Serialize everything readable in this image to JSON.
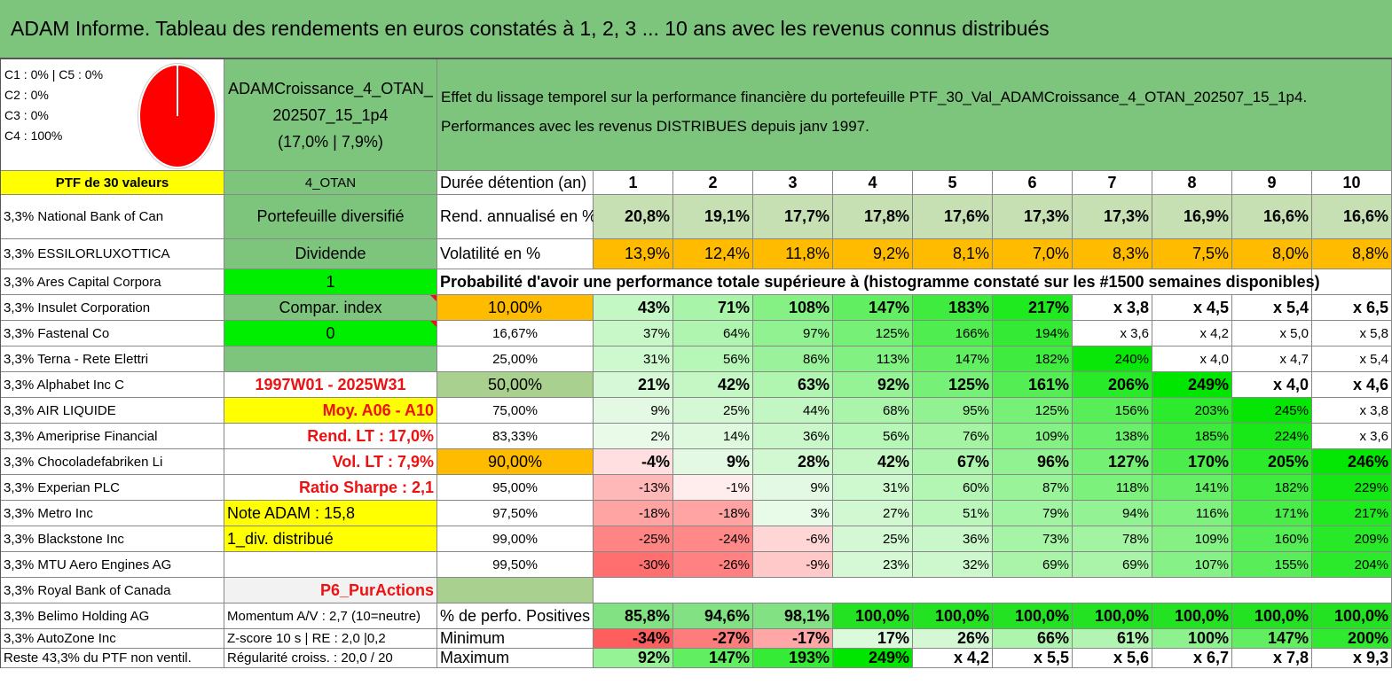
{
  "title": "ADAM Informe. Tableau des rendements en euros constatés à 1, 2, 3 ... 10 ans avec les revenus connus distribués",
  "allocation": [
    "C1 : 0% | C5 : 0%",
    "C2 : 0%",
    "C3 : 0%",
    "C4 : 100%"
  ],
  "pie": {
    "icon": "pie-chart-icon",
    "color": "#ff0000"
  },
  "fund": {
    "line1": "ADAMCroissance_4_OTAN_",
    "line2": "202507_15_1p4",
    "line3": "(17,0% | 7,9%)"
  },
  "description": {
    "line1": "Effet du lissage temporel sur la performance financière du portefeuille PTF_30_Val_ADAMCroissance_4_OTAN_202507_15_1p4.",
    "line2": "Performances avec les revenus DISTRIBUES depuis janv 1997."
  },
  "ptf_label": "PTF de 30 valeurs",
  "otan_label": "4_OTAN",
  "years_label": "Durée détention (an)",
  "years": [
    "1",
    "2",
    "3",
    "4",
    "5",
    "6",
    "7",
    "8",
    "9",
    "10"
  ],
  "rend_label": "Rend. annualisé en %",
  "rend": [
    "20,8%",
    "19,1%",
    "17,7%",
    "17,8%",
    "17,6%",
    "17,3%",
    "17,3%",
    "16,9%",
    "16,6%",
    "16,6%"
  ],
  "vol_label": "Volatilité en %",
  "vol": [
    "13,9%",
    "12,4%",
    "11,8%",
    "9,2%",
    "8,1%",
    "7,0%",
    "8,3%",
    "7,5%",
    "8,0%",
    "8,8%"
  ],
  "prob_label": "Probabilité d'avoir une performance totale supérieure à (histogramme constaté sur les #1500 semaines disponibles)",
  "holdings": [
    "3,3% National Bank of Can",
    "3,3% ESSILORLUXOTTICA",
    "3,3% Ares Capital Corpora",
    "3,3% Insulet Corporation",
    "3,3% Fastenal Co",
    "3,3% Terna - Rete Elettri",
    "3,3% Alphabet Inc C",
    "3,3% AIR LIQUIDE",
    "3,3% Ameriprise Financial",
    "3,3% Chocoladefabriken Li",
    "3,3% Experian PLC",
    "3,3% Metro Inc",
    "3,3% Blackstone Inc",
    "3,3% MTU Aero Engines AG",
    "3,3% Royal Bank of Canada",
    "3,3% Belimo Holding AG",
    "3,3% AutoZone Inc",
    "Reste 43,3% du PTF non ventil."
  ],
  "side": {
    "diversifie": "Portefeuille diversifié",
    "dividende": "Dividende",
    "one": "1",
    "compar": "Compar. index",
    "zero": "0",
    "period": "1997W01 - 2025W31",
    "moy": "Moy. A06 - A10",
    "rend_lt": "Rend. LT : 17,0%",
    "vol_lt": "Vol. LT : 7,9%",
    "sharpe": "Ratio Sharpe : 2,1",
    "note": "Note ADAM : 15,8",
    "div": "1_div. distribué",
    "p6": "P6_PurActions",
    "momentum": "Momentum A/V : 2,7 (10=neutre)",
    "zscore": "Z-score 10 s | RE : 2,0 |0,2",
    "regul": "Régularité croiss. : 20,0 / 20"
  },
  "quantiles": [
    {
      "label": "10,00%",
      "values": [
        "43%",
        "71%",
        "108%",
        "147%",
        "183%",
        "217%",
        "x 3,8",
        "x 4,5",
        "x 5,4",
        "x 6,5"
      ]
    },
    {
      "label": "16,67%",
      "values": [
        "37%",
        "64%",
        "97%",
        "125%",
        "166%",
        "194%",
        "x 3,6",
        "x 4,2",
        "x 5,0",
        "x 5,8"
      ]
    },
    {
      "label": "25,00%",
      "values": [
        "31%",
        "56%",
        "86%",
        "113%",
        "147%",
        "182%",
        "240%",
        "x 4,0",
        "x 4,7",
        "x 5,4"
      ]
    },
    {
      "label": "50,00%",
      "values": [
        "21%",
        "42%",
        "63%",
        "92%",
        "125%",
        "161%",
        "206%",
        "249%",
        "x 4,0",
        "x 4,6"
      ]
    },
    {
      "label": "75,00%",
      "values": [
        "9%",
        "25%",
        "44%",
        "68%",
        "95%",
        "125%",
        "156%",
        "203%",
        "245%",
        "x 3,8"
      ]
    },
    {
      "label": "83,33%",
      "values": [
        "2%",
        "14%",
        "36%",
        "56%",
        "76%",
        "109%",
        "138%",
        "185%",
        "224%",
        "x 3,6"
      ]
    },
    {
      "label": "90,00%",
      "values": [
        "-4%",
        "9%",
        "28%",
        "42%",
        "67%",
        "96%",
        "127%",
        "170%",
        "205%",
        "246%"
      ]
    },
    {
      "label": "95,00%",
      "values": [
        "-13%",
        "-1%",
        "9%",
        "31%",
        "60%",
        "87%",
        "118%",
        "141%",
        "182%",
        "229%"
      ]
    },
    {
      "label": "97,50%",
      "values": [
        "-18%",
        "-18%",
        "3%",
        "27%",
        "51%",
        "79%",
        "94%",
        "116%",
        "171%",
        "217%"
      ]
    },
    {
      "label": "99,00%",
      "values": [
        "-25%",
        "-24%",
        "-6%",
        "25%",
        "36%",
        "73%",
        "78%",
        "109%",
        "160%",
        "209%"
      ]
    },
    {
      "label": "99,50%",
      "values": [
        "-30%",
        "-26%",
        "-9%",
        "23%",
        "32%",
        "69%",
        "69%",
        "107%",
        "155%",
        "204%"
      ]
    }
  ],
  "positives_label": "% de perfo. Positives",
  "positives": [
    "85,8%",
    "94,6%",
    "98,1%",
    "100,0%",
    "100,0%",
    "100,0%",
    "100,0%",
    "100,0%",
    "100,0%",
    "100,0%"
  ],
  "min_label": "Minimum",
  "min": [
    "-34%",
    "-27%",
    "-17%",
    "17%",
    "26%",
    "66%",
    "61%",
    "100%",
    "147%",
    "200%"
  ],
  "max_label": "Maximum",
  "max": [
    "92%",
    "147%",
    "193%",
    "249%",
    "x 4,2",
    "x 5,5",
    "x 5,6",
    "x 6,7",
    "x 7,8",
    "x 9,3"
  ],
  "colors": {
    "title_bg": "#7dc47d",
    "yellow": "#ffff00",
    "orange": "#ffbb00",
    "bright_green": "#00ee00",
    "red_text": "#e11111"
  }
}
